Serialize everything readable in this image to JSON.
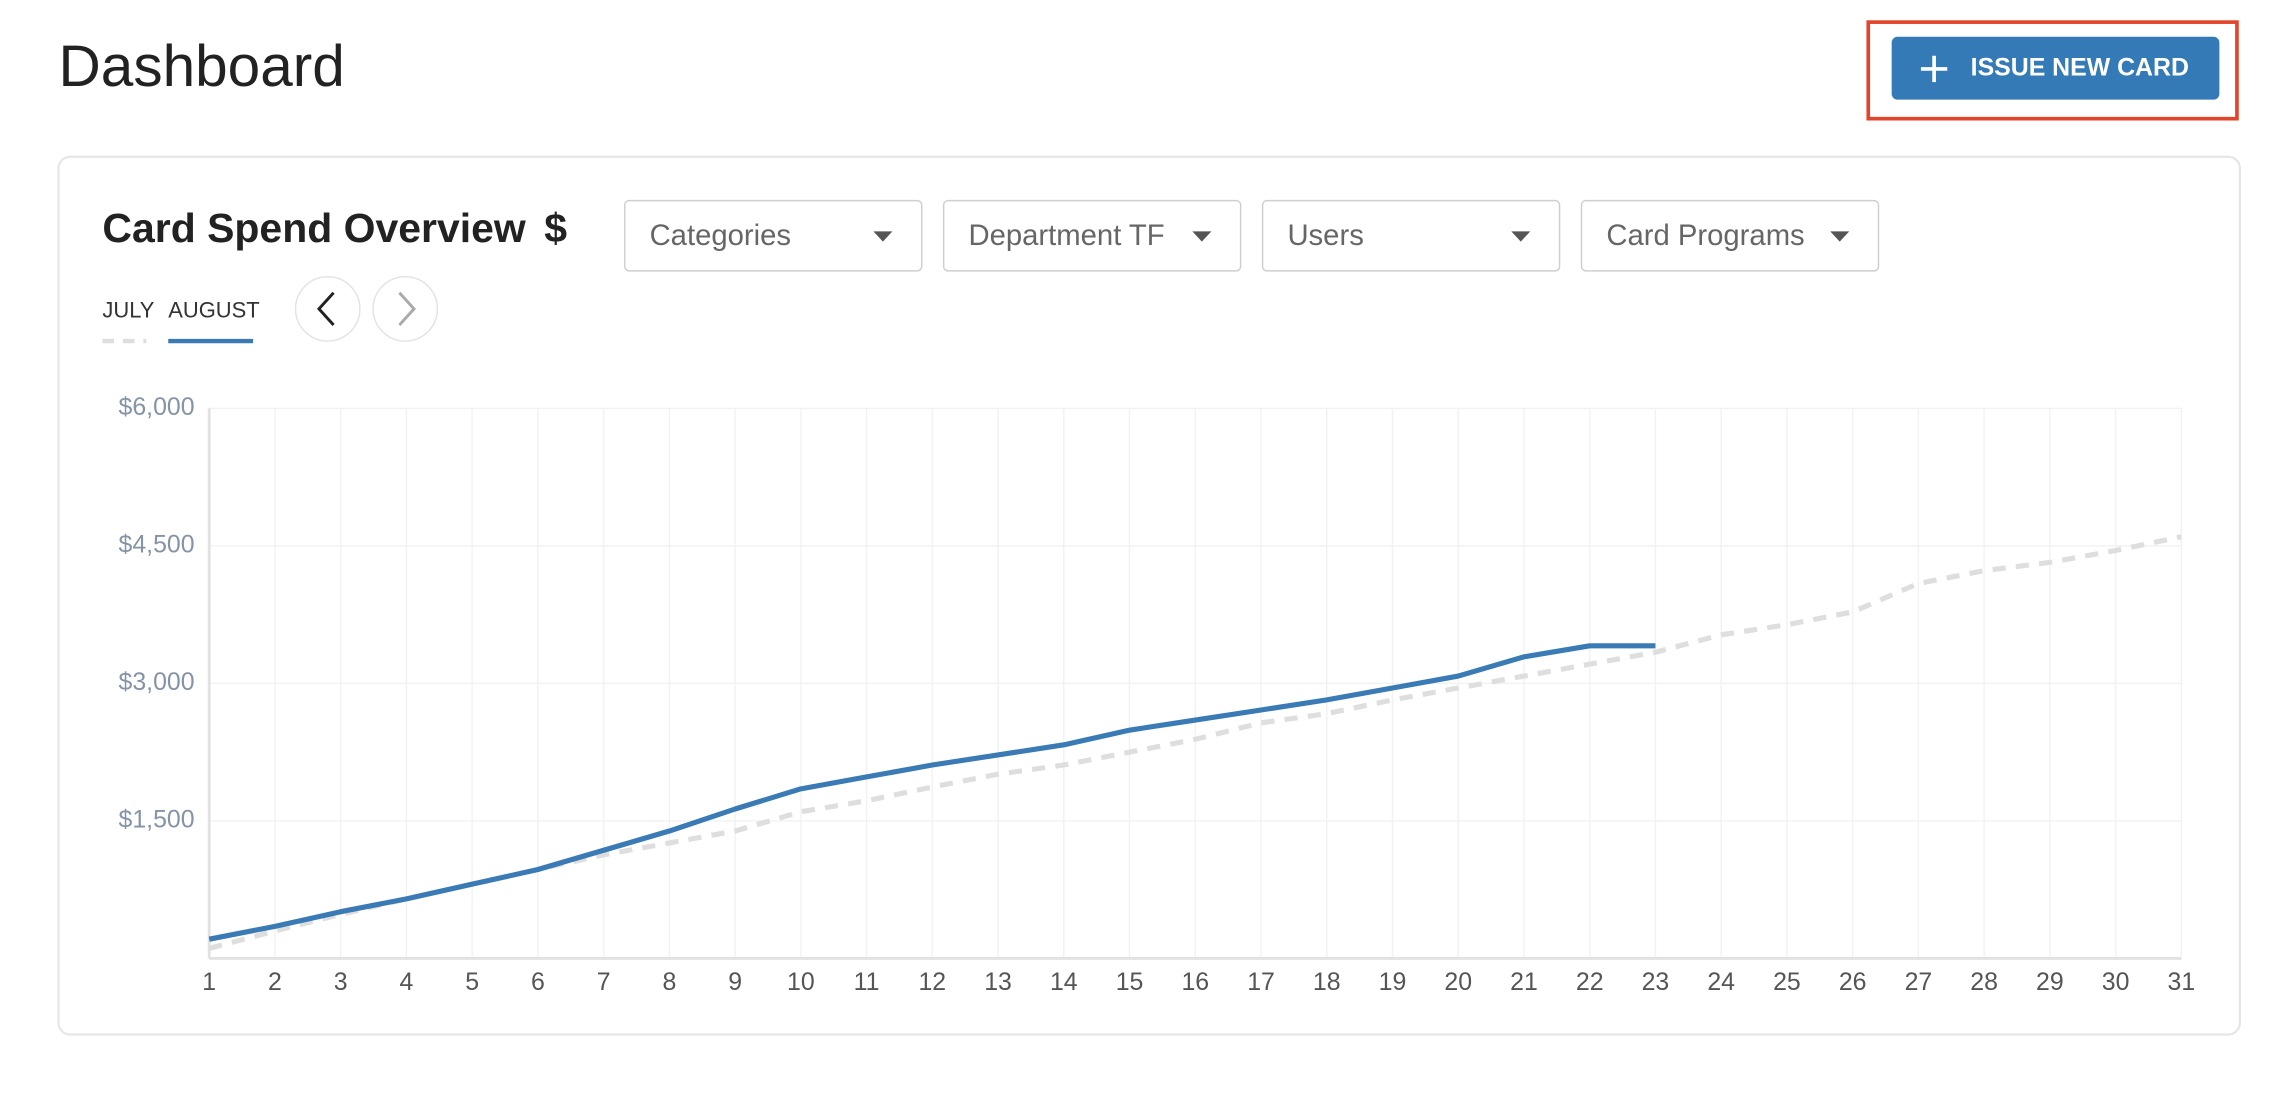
{
  "header": {
    "title": "Dashboard",
    "button": "ISSUE NEW CARD"
  },
  "card": {
    "title": "Card Spend Overview",
    "currency": "$"
  },
  "filters": [
    "Categories",
    "Department TF",
    "Users",
    "Card Programs"
  ],
  "chart_data": {
    "type": "line",
    "x": [
      1,
      2,
      3,
      4,
      5,
      6,
      7,
      8,
      9,
      10,
      11,
      12,
      13,
      14,
      15,
      16,
      17,
      18,
      19,
      20,
      21,
      22,
      23,
      24,
      25,
      26,
      27,
      28,
      29,
      30,
      31
    ],
    "xlim": [
      1,
      31
    ],
    "series": [
      {
        "name": "JULY",
        "color": "#dedede",
        "style": "dashed",
        "values": [
          110,
          300,
          480,
          650,
          810,
          970,
          1130,
          1260,
          1390,
          1600,
          1720,
          1870,
          2010,
          2110,
          2250,
          2390,
          2570,
          2670,
          2820,
          2950,
          3080,
          3210,
          3340,
          3530,
          3640,
          3780,
          4090,
          4230,
          4320,
          4450,
          4600
        ]
      },
      {
        "name": "AUGUST",
        "color": "#3a7ab5",
        "style": "solid",
        "values": [
          210,
          350,
          510,
          650,
          810,
          970,
          1180,
          1390,
          1630,
          1850,
          1980,
          2110,
          2220,
          2330,
          2490,
          2600,
          2710,
          2820,
          2950,
          3080,
          3290,
          3410,
          3410,
          null,
          null,
          null,
          null,
          null,
          null,
          null,
          null
        ]
      }
    ],
    "ylim": [
      0,
      6000
    ],
    "yticks": [
      {
        "value": 1500,
        "label": "$1,500"
      },
      {
        "value": 3000,
        "label": "$3,000"
      },
      {
        "value": 4500,
        "label": "$4,500"
      },
      {
        "value": 6000,
        "label": "$6,000"
      }
    ],
    "grid": true
  }
}
